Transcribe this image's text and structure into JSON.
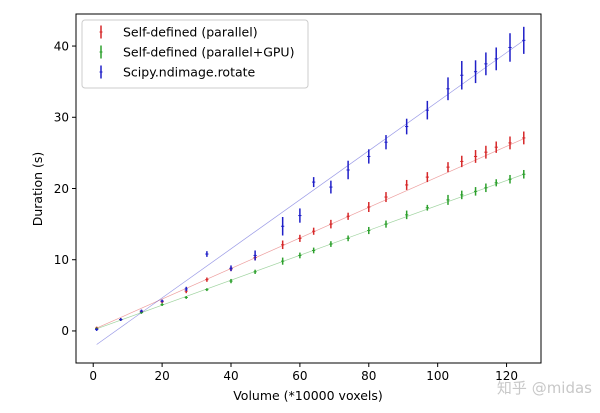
{
  "chart_data": {
    "type": "line",
    "title": "",
    "xlabel": "Volume (*10000 voxels)",
    "ylabel": "Duration (s)",
    "xlim": [
      -5,
      130
    ],
    "ylim": [
      -4.5,
      44.5
    ],
    "xticks": [
      0,
      20,
      40,
      60,
      80,
      100,
      120
    ],
    "yticks": [
      0,
      10,
      20,
      30,
      40
    ],
    "xtick_labels": [
      "0",
      "20",
      "40",
      "60",
      "80",
      "100",
      "120"
    ],
    "ytick_labels": [
      "0",
      "10",
      "20",
      "30",
      "40"
    ],
    "grid": false,
    "legend_position": "upper-left",
    "series": [
      {
        "name": "Self-defined (parallel)",
        "color": "#d62728",
        "fit_line": [
          [
            1,
            0.4
          ],
          [
            125,
            27.0
          ]
        ],
        "points": [
          {
            "x": 1,
            "y": 0.4,
            "err": 0.2
          },
          {
            "x": 8,
            "y": 1.6,
            "err": 0.2
          },
          {
            "x": 14,
            "y": 2.7,
            "err": 0.2
          },
          {
            "x": 20,
            "y": 4.1,
            "err": 0.2
          },
          {
            "x": 27,
            "y": 5.6,
            "err": 0.3
          },
          {
            "x": 33,
            "y": 7.2,
            "err": 0.3
          },
          {
            "x": 40,
            "y": 8.7,
            "err": 0.3
          },
          {
            "x": 47,
            "y": 10.3,
            "err": 0.4
          },
          {
            "x": 55,
            "y": 12.1,
            "err": 0.6
          },
          {
            "x": 60,
            "y": 13.0,
            "err": 0.5
          },
          {
            "x": 64,
            "y": 14.0,
            "err": 0.5
          },
          {
            "x": 69,
            "y": 15.0,
            "err": 0.6
          },
          {
            "x": 74,
            "y": 16.1,
            "err": 0.5
          },
          {
            "x": 80,
            "y": 17.4,
            "err": 0.7
          },
          {
            "x": 85,
            "y": 18.8,
            "err": 0.7
          },
          {
            "x": 91,
            "y": 20.5,
            "err": 0.7
          },
          {
            "x": 97,
            "y": 21.6,
            "err": 0.7
          },
          {
            "x": 103,
            "y": 23.0,
            "err": 0.7
          },
          {
            "x": 107,
            "y": 23.8,
            "err": 0.8
          },
          {
            "x": 111,
            "y": 24.5,
            "err": 0.9
          },
          {
            "x": 114,
            "y": 25.1,
            "err": 0.9
          },
          {
            "x": 117,
            "y": 25.8,
            "err": 0.8
          },
          {
            "x": 121,
            "y": 26.4,
            "err": 0.9
          },
          {
            "x": 125,
            "y": 27.1,
            "err": 0.9
          }
        ]
      },
      {
        "name": "Self-defined (parallel+GPU)",
        "color": "#2ca02c",
        "fit_line": [
          [
            1,
            0.3
          ],
          [
            125,
            22.0
          ]
        ],
        "points": [
          {
            "x": 1,
            "y": 0.3,
            "err": 0.2
          },
          {
            "x": 8,
            "y": 1.6,
            "err": 0.2
          },
          {
            "x": 14,
            "y": 2.6,
            "err": 0.2
          },
          {
            "x": 20,
            "y": 3.7,
            "err": 0.2
          },
          {
            "x": 27,
            "y": 4.7,
            "err": 0.2
          },
          {
            "x": 33,
            "y": 5.8,
            "err": 0.2
          },
          {
            "x": 40,
            "y": 7.0,
            "err": 0.3
          },
          {
            "x": 47,
            "y": 8.3,
            "err": 0.3
          },
          {
            "x": 55,
            "y": 9.8,
            "err": 0.5
          },
          {
            "x": 60,
            "y": 10.6,
            "err": 0.4
          },
          {
            "x": 64,
            "y": 11.3,
            "err": 0.4
          },
          {
            "x": 69,
            "y": 12.2,
            "err": 0.4
          },
          {
            "x": 74,
            "y": 13.0,
            "err": 0.4
          },
          {
            "x": 80,
            "y": 14.1,
            "err": 0.5
          },
          {
            "x": 85,
            "y": 15.0,
            "err": 0.5
          },
          {
            "x": 91,
            "y": 16.3,
            "err": 0.6
          },
          {
            "x": 97,
            "y": 17.3,
            "err": 0.4
          },
          {
            "x": 103,
            "y": 18.4,
            "err": 0.7
          },
          {
            "x": 107,
            "y": 19.1,
            "err": 0.6
          },
          {
            "x": 111,
            "y": 19.6,
            "err": 0.6
          },
          {
            "x": 114,
            "y": 20.1,
            "err": 0.6
          },
          {
            "x": 117,
            "y": 20.8,
            "err": 0.5
          },
          {
            "x": 121,
            "y": 21.3,
            "err": 0.6
          },
          {
            "x": 125,
            "y": 22.0,
            "err": 0.6
          }
        ]
      },
      {
        "name": "Scipy.ndimage.rotate",
        "color": "#1f1fc8",
        "fit_line": [
          [
            1,
            -1.9
          ],
          [
            125,
            40.8
          ]
        ],
        "points": [
          {
            "x": 1,
            "y": 0.2,
            "err": 0.2
          },
          {
            "x": 8,
            "y": 1.6,
            "err": 0.2
          },
          {
            "x": 14,
            "y": 2.8,
            "err": 0.2
          },
          {
            "x": 20,
            "y": 4.2,
            "err": 0.2
          },
          {
            "x": 27,
            "y": 5.9,
            "err": 0.3
          },
          {
            "x": 33,
            "y": 10.8,
            "err": 0.4
          },
          {
            "x": 40,
            "y": 8.8,
            "err": 0.4
          },
          {
            "x": 47,
            "y": 10.6,
            "err": 0.7
          },
          {
            "x": 55,
            "y": 14.7,
            "err": 1.3
          },
          {
            "x": 60,
            "y": 16.2,
            "err": 1.0
          },
          {
            "x": 64,
            "y": 20.9,
            "err": 0.7
          },
          {
            "x": 69,
            "y": 20.2,
            "err": 0.9
          },
          {
            "x": 74,
            "y": 22.6,
            "err": 1.3
          },
          {
            "x": 80,
            "y": 24.5,
            "err": 1.0
          },
          {
            "x": 85,
            "y": 26.5,
            "err": 1.0
          },
          {
            "x": 91,
            "y": 28.7,
            "err": 1.1
          },
          {
            "x": 97,
            "y": 31.0,
            "err": 1.3
          },
          {
            "x": 103,
            "y": 34.0,
            "err": 1.6
          },
          {
            "x": 107,
            "y": 35.9,
            "err": 2.0
          },
          {
            "x": 111,
            "y": 36.4,
            "err": 1.6
          },
          {
            "x": 114,
            "y": 37.5,
            "err": 1.6
          },
          {
            "x": 117,
            "y": 38.2,
            "err": 1.6
          },
          {
            "x": 121,
            "y": 39.8,
            "err": 2.0
          },
          {
            "x": 125,
            "y": 40.8,
            "err": 1.9
          }
        ]
      }
    ]
  },
  "watermark": "知乎 @midas"
}
